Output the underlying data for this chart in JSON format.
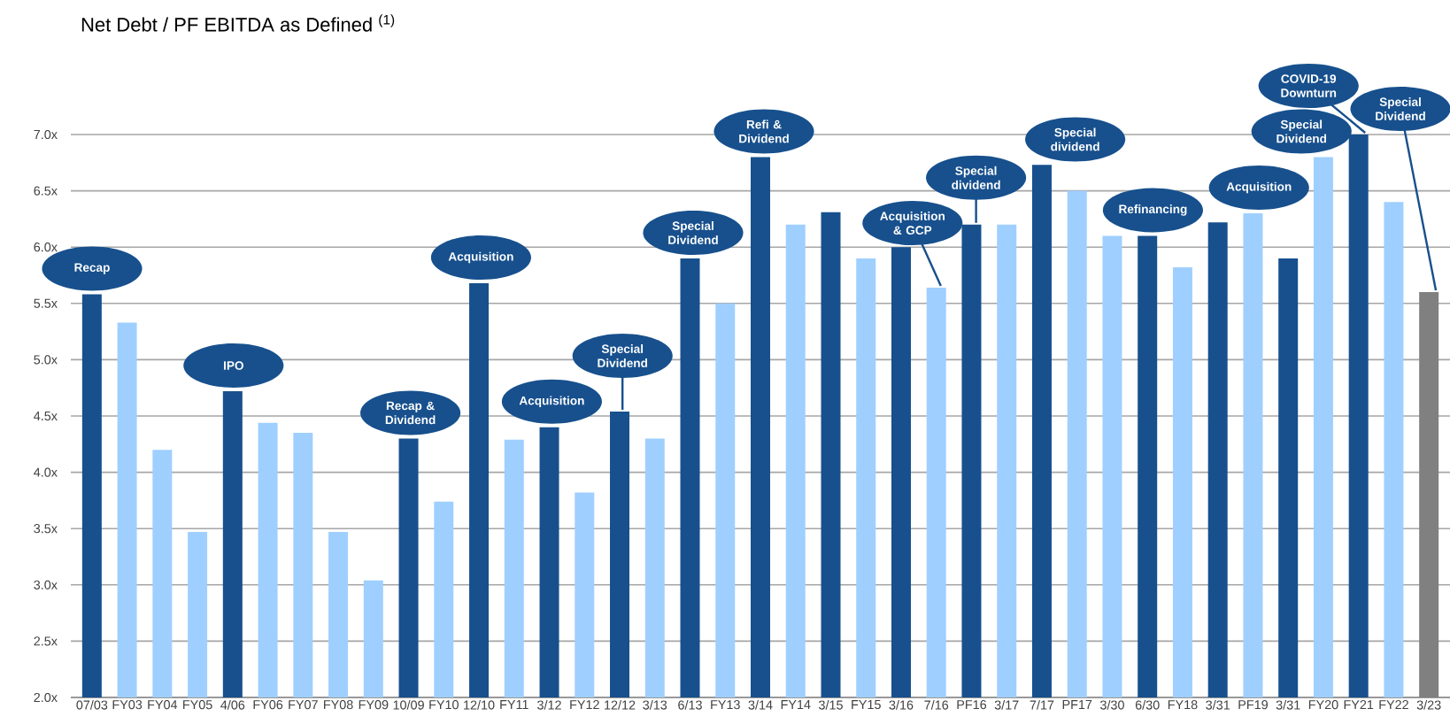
{
  "chart_data": {
    "type": "bar",
    "title": "Net Debt / PF EBITDA as Defined $^{(1)}$",
    "categories": [
      "07/03",
      "FY03",
      "FY04",
      "FY05",
      "4/06",
      "FY06",
      "FY07",
      "FY08",
      "FY09",
      "10/09",
      "FY10",
      "12/10",
      "FY11",
      "3/12",
      "FY12",
      "12/12",
      "3/13",
      "6/13",
      "FY13",
      "3/14",
      "FY14",
      "3/15",
      "FY15",
      "3/16",
      "7/16",
      "PF16",
      "3/17",
      "7/17",
      "PF17",
      "3/30",
      "6/30",
      "FY18",
      "3/31",
      "PF19",
      "3/31",
      "FY20",
      "FY21",
      "FY22",
      "3/23"
    ],
    "values": [
      5.58,
      5.33,
      4.2,
      3.47,
      4.72,
      4.44,
      4.35,
      3.47,
      3.04,
      4.3,
      3.74,
      5.68,
      4.29,
      4.4,
      3.82,
      4.54,
      4.3,
      5.9,
      5.5,
      6.8,
      6.2,
      6.31,
      5.9,
      6.0,
      5.64,
      6.2,
      6.2,
      6.73,
      6.5,
      6.1,
      6.1,
      5.82,
      6.22,
      6.3,
      5.9,
      6.8,
      7.0,
      6.4,
      5.6
    ],
    "colors": [
      "#17508d",
      "#9fcfff",
      "#9fcfff",
      "#9fcfff",
      "#17508d",
      "#9fcfff",
      "#9fcfff",
      "#9fcfff",
      "#9fcfff",
      "#17508d",
      "#9fcfff",
      "#17508d",
      "#9fcfff",
      "#17508d",
      "#9fcfff",
      "#17508d",
      "#9fcfff",
      "#17508d",
      "#9fcfff",
      "#17508d",
      "#9fcfff",
      "#17508d",
      "#9fcfff",
      "#17508d",
      "#9fcfff",
      "#17508d",
      "#9fcfff",
      "#17508d",
      "#9fcfff",
      "#9fcfff",
      "#17508d",
      "#9fcfff",
      "#17508d",
      "#9fcfff",
      "#17508d",
      "#9fcfff",
      "#17508d",
      "#9fcfff",
      "#808080"
    ],
    "ylim": [
      2.0,
      7.0
    ],
    "yticks": [
      {
        "value": 2.0,
        "label": "2.0x"
      },
      {
        "value": 2.5,
        "label": "2.5x"
      },
      {
        "value": 3.0,
        "label": "3.0x"
      },
      {
        "value": 3.5,
        "label": "3.5x"
      },
      {
        "value": 4.0,
        "label": "4.0x"
      },
      {
        "value": 4.5,
        "label": "4.5x"
      },
      {
        "value": 5.0,
        "label": "5.0x"
      },
      {
        "value": 5.5,
        "label": "5.5x"
      },
      {
        "value": 6.0,
        "label": "6.0x"
      },
      {
        "value": 6.5,
        "label": "6.5x"
      },
      {
        "value": 7.0,
        "label": "7.0x"
      }
    ],
    "grid": "y",
    "annotations": [
      {
        "text": "Recap",
        "x": "07/03",
        "y": 5.58
      },
      {
        "text": "IPO",
        "x": "4/06",
        "y": 4.72
      },
      {
        "text": "Recap & Dividend",
        "x": "10/09",
        "y": 4.3
      },
      {
        "text": "Acquisition",
        "x": "12/10",
        "y": 5.68
      },
      {
        "text": "Acquisition",
        "x": "3/12",
        "y": 4.4
      },
      {
        "text": "Special Dividend",
        "x": "12/12",
        "y": 4.54
      },
      {
        "text": "Special Dividend",
        "x": "6/13",
        "y": 5.9
      },
      {
        "text": "Refi & Dividend",
        "x": "3/14",
        "y": 6.8
      },
      {
        "text": "Acquisition & GCP",
        "x": "7/16",
        "y": 5.64
      },
      {
        "text": "Special dividend",
        "x": "PF16",
        "y": 6.2
      },
      {
        "text": "Special dividend",
        "x": "7/17",
        "y": 6.73
      },
      {
        "text": "Refinancing",
        "x": "6/30",
        "y": 6.1
      },
      {
        "text": "Acquisition",
        "x": "PF19",
        "y": 6.3
      },
      {
        "text": "Special Dividend",
        "x": "FY20",
        "y": 6.8
      },
      {
        "text": "COVID-19 Downturn",
        "x": "FY21",
        "y": 7.0
      },
      {
        "text": "Special Dividend",
        "x": "3/23",
        "y": 5.6
      }
    ]
  }
}
